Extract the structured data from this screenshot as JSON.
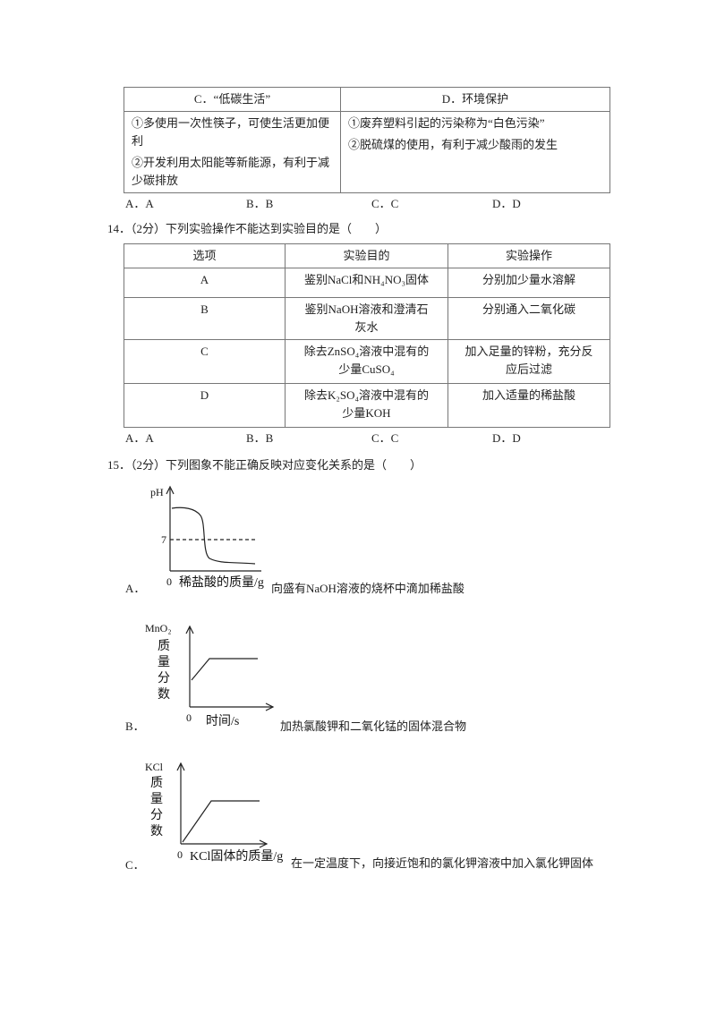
{
  "q13": {
    "table": {
      "headers": [
        "C．“低碳生活”",
        "D．环境保护"
      ],
      "cells": [
        [
          "①多使用一次性筷子，可使生活更加便利",
          "②开发利用太阳能等新能源，有利于减少碳排放"
        ],
        [
          "①废弃塑料引起的污染称为“白色污染”",
          "②脱硫煤的使用，有利于减少酸雨的发生"
        ]
      ]
    },
    "options": [
      "A．A",
      "B．B",
      "C．C",
      "D．D"
    ]
  },
  "q14": {
    "stem": "14．（2分）下列实验操作不能达到实验目的是（　　）",
    "table": {
      "headers": [
        "选项",
        "实验目的",
        "实验操作"
      ],
      "rows": [
        [
          "A",
          "鉴别NaCl和NH₄NO₃固体",
          "分别加少量水溶解"
        ],
        [
          "B",
          "鉴别NaOH溶液和澄清石灰水",
          "分别通入二氧化碳"
        ],
        [
          "C",
          "除去ZnSO₄溶液中混有的少量CuSO₄",
          "加入足量的锌粉，充分反应后过滤"
        ],
        [
          "D",
          "除去K₂SO₄溶液中混有的少量KOH",
          "加入适量的稀盐酸"
        ]
      ]
    },
    "options": [
      "A．A",
      "B．B",
      "C．C",
      "D．D"
    ]
  },
  "q15": {
    "stem": "15．（2分）下列图象不能正确反映对应变化关系的是（　　）",
    "options": [
      {
        "letter": "A．",
        "y_label": "pH",
        "y_mark": "7",
        "origin": "0",
        "x_label": "稀盐酸的质量/g",
        "caption": "向盛有NaOH溶液的烧杯中滴加稀盐酸"
      },
      {
        "letter": "B．",
        "y_label": [
          "MnO₂",
          "质",
          "量",
          "分",
          "数"
        ],
        "origin": "0",
        "x_label": "时间/s",
        "caption": "加热氯酸钾和二氧化锰的固体混合物"
      },
      {
        "letter": "C．",
        "y_label": [
          "KCl",
          "质",
          "量",
          "分",
          "数"
        ],
        "origin": "0",
        "x_label": "KCl固体的质量/g",
        "caption": "在一定温度下，向接近饱和的氯化钾溶液中加入氯化钾固体"
      }
    ]
  }
}
